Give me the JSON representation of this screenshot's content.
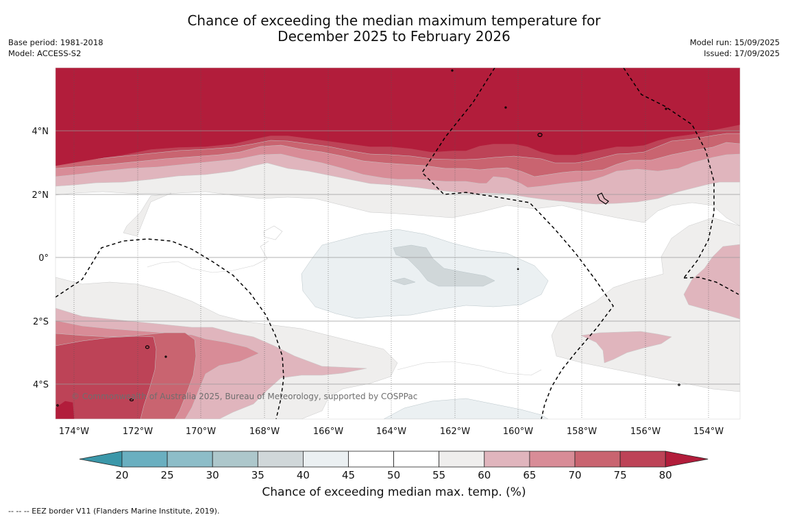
{
  "title": {
    "line1": "Chance of exceeding the median maximum temperature for",
    "line2": "December 2025 to February 2026"
  },
  "meta_left": {
    "base_period": "Base period: 1981-2018",
    "model": "Model: ACCESS-S2"
  },
  "meta_right": {
    "model_run": "Model run: 15/09/2025",
    "issued": "Issued: 17/09/2025"
  },
  "map": {
    "copyright": "© Commonwealth of Australia 2025, Bureau of Meteorology, supported by COSPPac",
    "lon_ticks": [
      "174°W",
      "172°W",
      "170°W",
      "168°W",
      "166°W",
      "164°W",
      "162°W",
      "160°W",
      "158°W",
      "156°W",
      "154°W"
    ],
    "lat_ticks": [
      "4°N",
      "2°N",
      "0°",
      "2°S",
      "4°S"
    ],
    "border_style": "dashed",
    "grid": true
  },
  "colorbar": {
    "ticks": [
      "20",
      "25",
      "30",
      "35",
      "40",
      "45",
      "50",
      "55",
      "60",
      "65",
      "70",
      "75",
      "80"
    ],
    "colors": [
      "#3b97a9",
      "#6aafc0",
      "#8dbdc8",
      "#adc7cb",
      "#d0d7d9",
      "#ebf0f2",
      "#ffffff",
      "#ffffff",
      "#efeeed",
      "#e0b5bd",
      "#d88c97",
      "#c96470",
      "#bd4357",
      "#b21d3b"
    ],
    "label": "Chance of exceeding median max. temp. (%)"
  },
  "footnote": "--  --  -- EEZ border V11 (Flanders Marine Institute, 2019)."
}
